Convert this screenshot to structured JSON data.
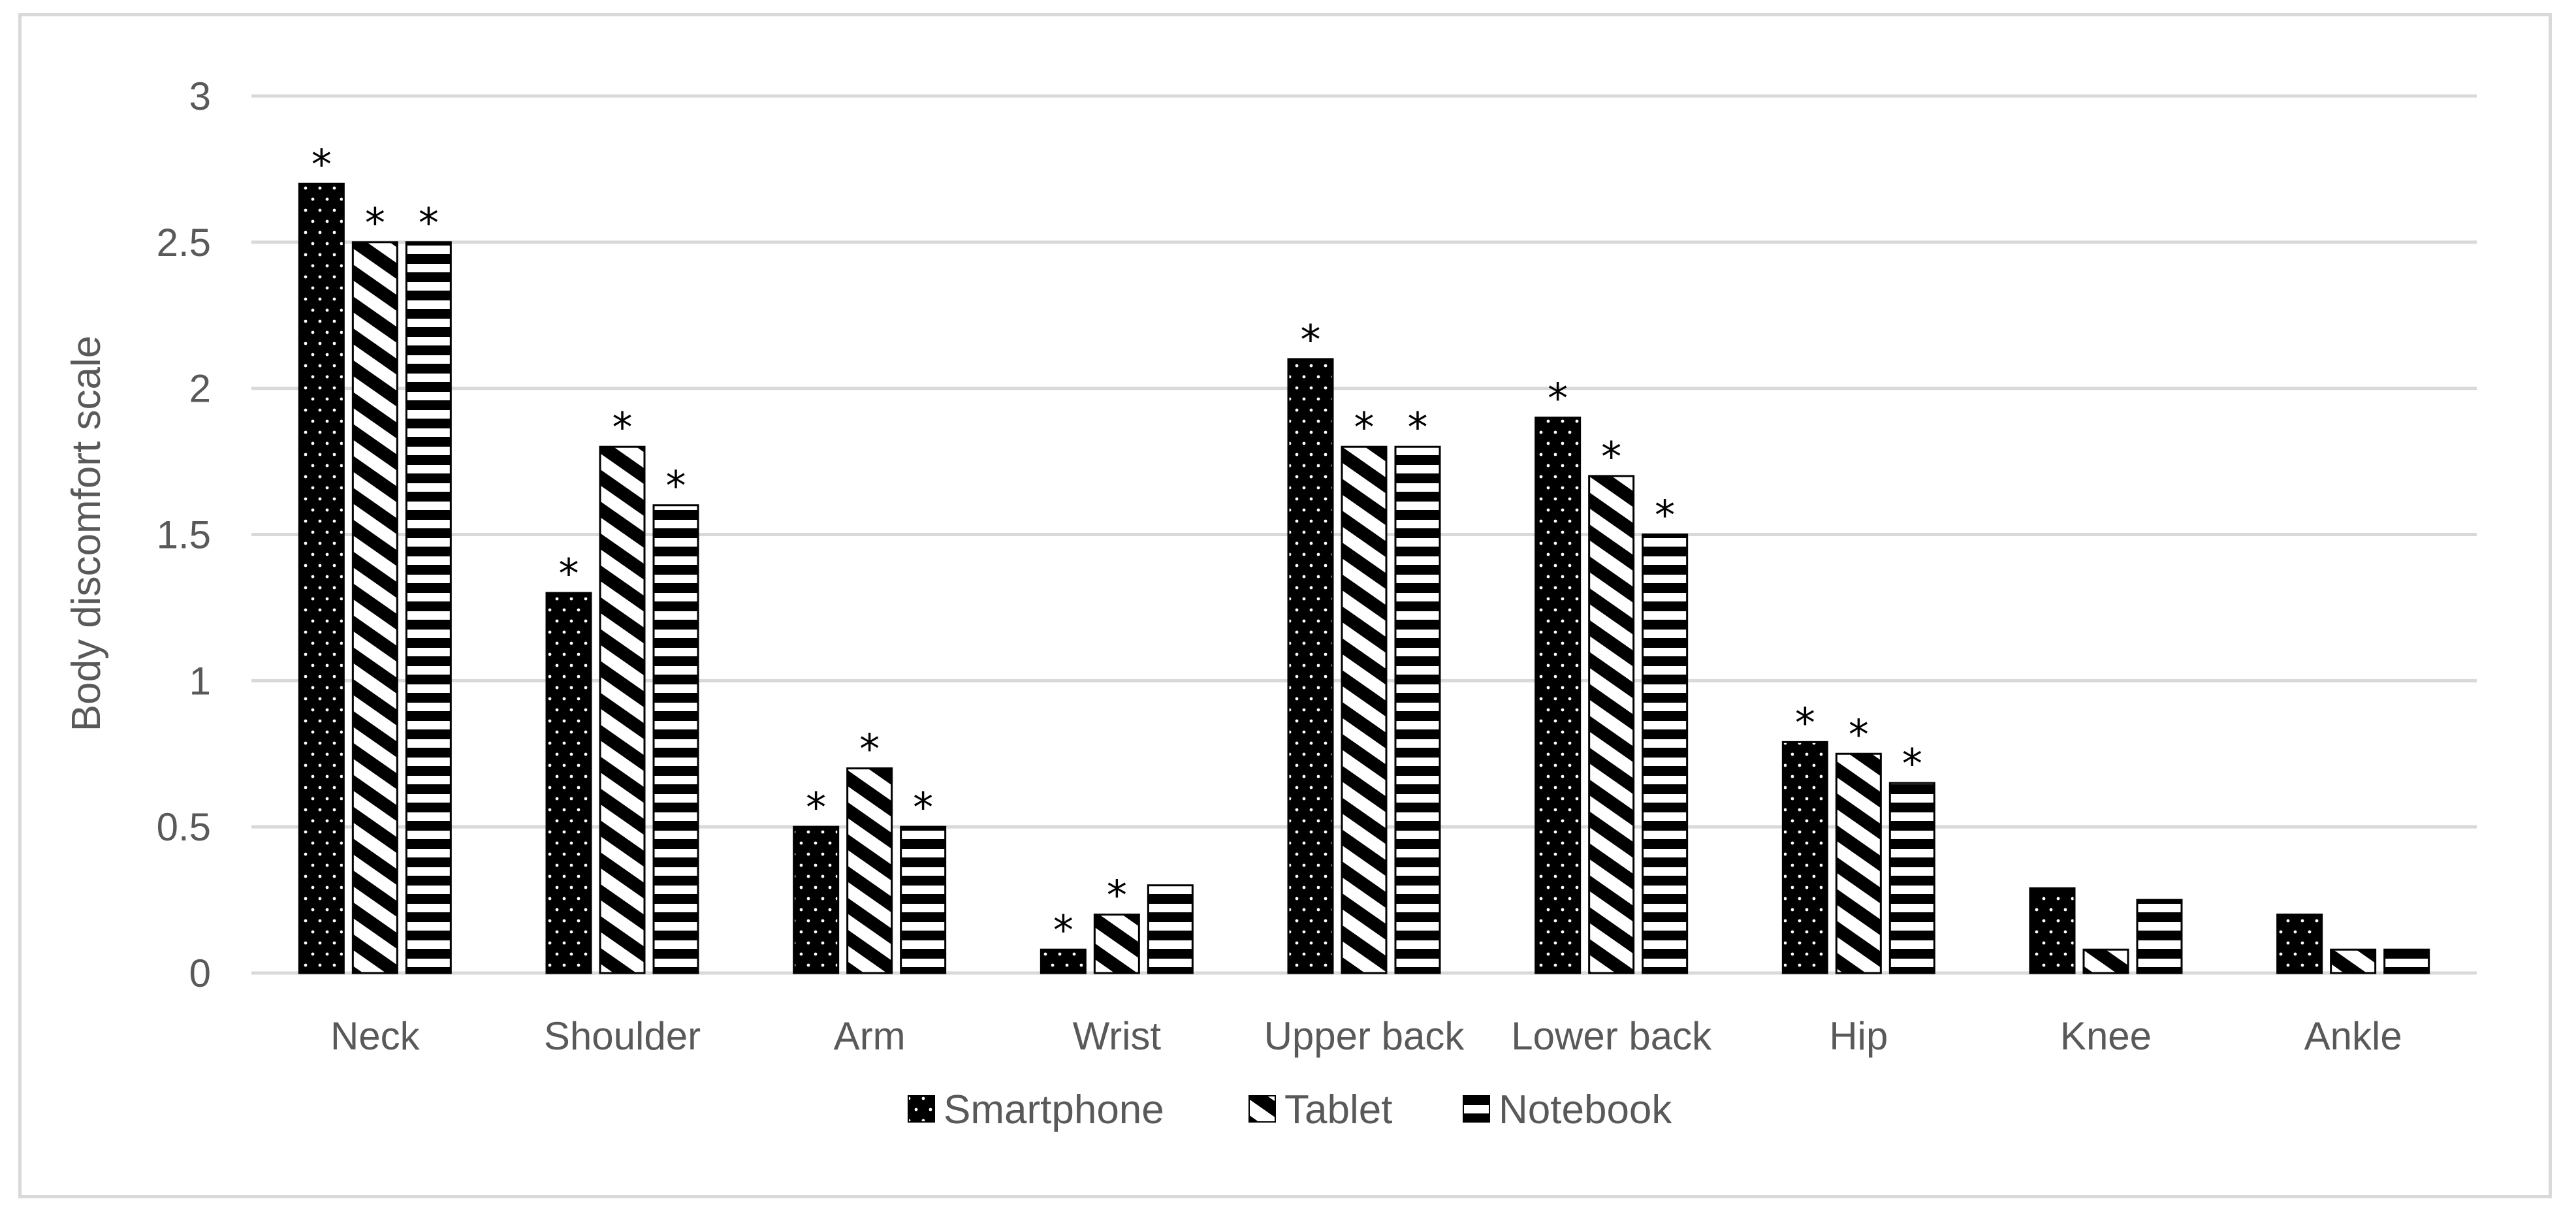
{
  "chart_data": {
    "type": "bar",
    "title": "",
    "xlabel": "",
    "ylabel": "Body discomfort scale",
    "ylim": [
      0,
      3
    ],
    "yticks": [
      "0",
      "0.5",
      "1",
      "1.5",
      "2",
      "2.5",
      "3"
    ],
    "grid": true,
    "legend_position": "bottom",
    "categories": [
      "Neck",
      "Shoulder",
      "Arm",
      "Wrist",
      "Upper back",
      "Lower back",
      "Hip",
      "Knee",
      "Ankle"
    ],
    "series": [
      {
        "name": "Smartphone",
        "pattern": "dots",
        "values": [
          2.7,
          1.3,
          0.5,
          0.08,
          2.1,
          1.9,
          0.79,
          0.29,
          0.2
        ],
        "significant": [
          true,
          true,
          true,
          true,
          true,
          true,
          true,
          false,
          false
        ]
      },
      {
        "name": "Tablet",
        "pattern": "diagonal",
        "values": [
          2.5,
          1.8,
          0.7,
          0.2,
          1.8,
          1.7,
          0.75,
          0.08,
          0.08
        ],
        "significant": [
          true,
          true,
          true,
          true,
          true,
          true,
          true,
          false,
          false
        ]
      },
      {
        "name": "Notebook",
        "pattern": "horizontal",
        "values": [
          2.5,
          1.6,
          0.5,
          0.3,
          1.8,
          1.5,
          0.65,
          0.25,
          0.08
        ],
        "significant": [
          true,
          true,
          true,
          false,
          true,
          true,
          true,
          false,
          false
        ]
      }
    ],
    "significance_marker": "*",
    "colors": {
      "bar": "#000000",
      "grid": "#d9d9d9",
      "text": "#595959",
      "frame": "#d9d9d9"
    }
  }
}
